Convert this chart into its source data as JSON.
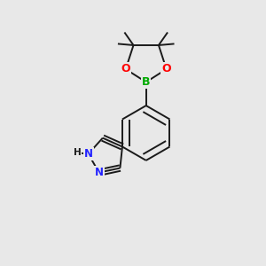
{
  "background_color": "#e8e8e8",
  "bond_color": "#1a1a1a",
  "atom_colors": {
    "B": "#00aa00",
    "O": "#ff0000",
    "N": "#2222ff",
    "C": "#1a1a1a",
    "H": "#1a1a1a"
  },
  "figsize": [
    3.0,
    3.0
  ],
  "dpi": 100,
  "xlim": [
    0,
    10
  ],
  "ylim": [
    0,
    10
  ]
}
